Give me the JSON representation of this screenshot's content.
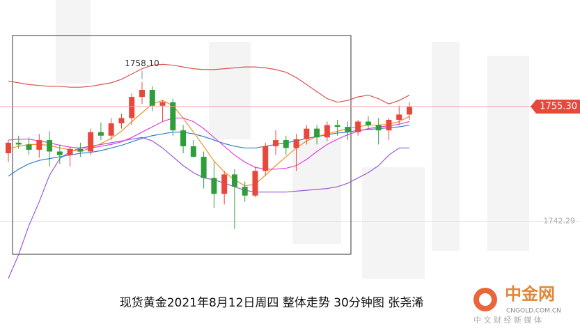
{
  "chart_data": {
    "type": "candlestick",
    "ylim": [
      1729.6,
      1767.4
    ],
    "yticks": [
      1742.29
    ],
    "last_price": {
      "value": 1755.3,
      "label": "1755.30"
    },
    "high_label": {
      "value": 1758.1,
      "label": "1758.10"
    },
    "up_color": "#e8473b",
    "down_color": "#2e9e3a",
    "ohlc": [
      [
        1750.0,
        1751.5,
        1749.0,
        1751.2
      ],
      [
        1751.2,
        1752.0,
        1750.5,
        1751.0
      ],
      [
        1751.0,
        1751.8,
        1749.8,
        1750.4
      ],
      [
        1750.4,
        1752.2,
        1749.5,
        1751.5
      ],
      [
        1751.5,
        1752.5,
        1748.5,
        1750.2
      ],
      [
        1750.2,
        1751.0,
        1748.8,
        1749.8
      ],
      [
        1749.8,
        1750.8,
        1748.5,
        1750.5
      ],
      [
        1750.5,
        1751.2,
        1749.6,
        1750.2
      ],
      [
        1750.2,
        1752.8,
        1749.8,
        1752.4
      ],
      [
        1752.4,
        1753.5,
        1751.5,
        1752.0
      ],
      [
        1752.0,
        1754.0,
        1751.5,
        1753.4
      ],
      [
        1753.4,
        1754.5,
        1752.8,
        1754.0
      ],
      [
        1754.0,
        1756.8,
        1753.2,
        1756.4
      ],
      [
        1756.4,
        1758.1,
        1755.6,
        1757.2
      ],
      [
        1757.2,
        1757.6,
        1754.8,
        1755.4
      ],
      [
        1755.4,
        1756.0,
        1753.6,
        1755.8
      ],
      [
        1755.8,
        1756.2,
        1752.0,
        1752.6
      ],
      [
        1752.6,
        1753.2,
        1750.0,
        1750.8
      ],
      [
        1750.8,
        1751.5,
        1749.5,
        1749.6
      ],
      [
        1749.6,
        1750.2,
        1746.0,
        1747.2
      ],
      [
        1747.2,
        1749.0,
        1743.8,
        1745.4
      ],
      [
        1745.4,
        1748.0,
        1744.2,
        1747.6
      ],
      [
        1747.6,
        1748.2,
        1741.4,
        1746.2
      ],
      [
        1746.2,
        1746.8,
        1744.5,
        1745.2
      ],
      [
        1745.2,
        1748.5,
        1745.0,
        1748.0
      ],
      [
        1748.0,
        1751.2,
        1747.5,
        1750.8
      ],
      [
        1750.8,
        1752.6,
        1749.8,
        1751.5
      ],
      [
        1751.5,
        1752.0,
        1749.8,
        1750.6
      ],
      [
        1750.6,
        1752.2,
        1748.0,
        1751.6
      ],
      [
        1751.6,
        1753.2,
        1751.0,
        1752.8
      ],
      [
        1752.8,
        1753.2,
        1751.0,
        1751.8
      ],
      [
        1751.8,
        1753.6,
        1751.4,
        1753.2
      ],
      [
        1753.2,
        1753.8,
        1752.0,
        1753.0
      ],
      [
        1753.0,
        1753.6,
        1751.5,
        1752.4
      ],
      [
        1752.4,
        1753.8,
        1752.0,
        1753.6
      ],
      [
        1753.6,
        1754.2,
        1752.8,
        1753.2
      ],
      [
        1753.2,
        1754.0,
        1751.0,
        1752.6
      ],
      [
        1752.6,
        1754.0,
        1751.5,
        1753.8
      ],
      [
        1753.8,
        1755.4,
        1753.2,
        1754.4
      ],
      [
        1754.4,
        1755.8,
        1753.8,
        1755.3
      ]
    ],
    "series": [
      {
        "color": "#d9534f",
        "values": [
          1758.2,
          1758.0,
          1757.8,
          1757.7,
          1757.6,
          1757.6,
          1757.5,
          1757.5,
          1757.6,
          1757.8,
          1758.0,
          1758.4,
          1759.0,
          1759.6,
          1760.0,
          1760.1,
          1760.0,
          1759.8,
          1759.6,
          1759.5,
          1759.5,
          1759.6,
          1759.7,
          1759.8,
          1759.8,
          1759.7,
          1759.5,
          1759.2,
          1758.6,
          1757.8,
          1757.0,
          1756.2,
          1755.8,
          1756.0,
          1756.4,
          1756.6,
          1756.2,
          1755.6,
          1756.0,
          1756.6
        ]
      },
      {
        "color": "#9b59d6",
        "values": [
          1735.8,
          1738.5,
          1741.8,
          1744.5,
          1747.5,
          1749.4,
          1750.2,
          1750.6,
          1750.8,
          1751.0,
          1751.2,
          1751.4,
          1751.6,
          1751.8,
          1751.4,
          1750.6,
          1749.6,
          1748.6,
          1747.8,
          1747.2,
          1747.0,
          1746.6,
          1746.2,
          1745.8,
          1745.6,
          1745.6,
          1745.6,
          1745.6,
          1745.7,
          1745.8,
          1745.9,
          1746.0,
          1746.2,
          1746.6,
          1747.2,
          1747.8,
          1748.6,
          1749.8,
          1750.6,
          1750.6
        ]
      },
      {
        "color": "#2f80d1",
        "values": [
          1747.4,
          1748.2,
          1748.8,
          1749.2,
          1749.4,
          1749.6,
          1749.8,
          1750.0,
          1750.1,
          1750.3,
          1750.6,
          1750.9,
          1751.3,
          1751.7,
          1752.0,
          1752.2,
          1752.4,
          1752.4,
          1752.2,
          1751.9,
          1751.5,
          1751.1,
          1750.8,
          1750.6,
          1750.6,
          1750.8,
          1751.0,
          1751.2,
          1751.4,
          1751.7,
          1751.9,
          1752.1,
          1752.3,
          1752.4,
          1752.6,
          1752.7,
          1752.8,
          1752.9,
          1753.0,
          1753.2
        ]
      },
      {
        "color": "#f0901e",
        "values": [
          1750.5,
          1750.8,
          1751.0,
          1751.0,
          1750.9,
          1750.6,
          1750.4,
          1750.2,
          1750.6,
          1751.1,
          1751.7,
          1752.5,
          1753.6,
          1754.6,
          1755.6,
          1756.0,
          1755.4,
          1754.0,
          1752.4,
          1750.8,
          1749.1,
          1747.9,
          1747.0,
          1746.3,
          1746.5,
          1747.5,
          1748.6,
          1749.6,
          1750.6,
          1751.4,
          1751.9,
          1752.2,
          1752.5,
          1752.8,
          1753.0,
          1753.2,
          1753.2,
          1753.3,
          1753.6,
          1754.2
        ]
      },
      {
        "color": "#e040e0",
        "values": [
          1751.5,
          1751.6,
          1751.6,
          1751.4,
          1751.2,
          1750.9,
          1750.7,
          1750.6,
          1750.6,
          1750.8,
          1751.0,
          1751.3,
          1751.8,
          1752.4,
          1753.0,
          1753.6,
          1754.0,
          1754.0,
          1753.6,
          1752.8,
          1751.8,
          1750.8,
          1749.8,
          1749.0,
          1748.4,
          1748.2,
          1748.2,
          1748.3,
          1748.6,
          1749.3,
          1750.2,
          1751.0,
          1751.6,
          1752.1,
          1752.5,
          1752.8,
          1753.0,
          1753.1,
          1753.3,
          1753.6
        ]
      }
    ],
    "caption": "现货黄金2021年8月12日周四 整体走势  30分钟图 张尧浠"
  },
  "logo": {
    "name": "中金网",
    "domain": "CNGOLD.COM.CN",
    "slogan": "中 文 财 经 新 媒 体"
  }
}
